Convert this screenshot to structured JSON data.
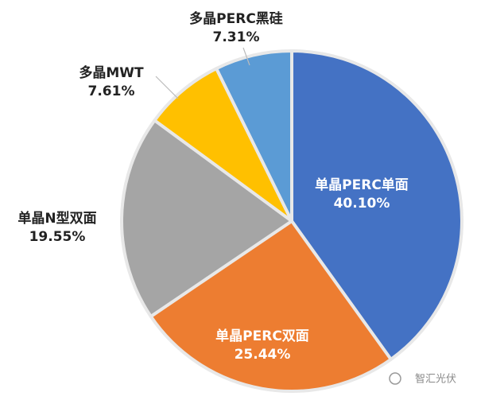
{
  "chart_data": {
    "type": "pie",
    "categories": [
      "单晶PERC单面",
      "单晶PERC双面",
      "单晶N型双面",
      "多晶MWT",
      "多晶PERC黑硅"
    ],
    "values": [
      40.1,
      25.44,
      19.55,
      7.61,
      7.31
    ],
    "value_labels": [
      "40.10%",
      "25.44%",
      "19.55%",
      "7.61%",
      "7.31%"
    ],
    "colors": [
      "#4472c4",
      "#ed7d31",
      "#a5a5a5",
      "#ffc000",
      "#5b9bd5"
    ]
  },
  "watermark": "智汇光伏"
}
